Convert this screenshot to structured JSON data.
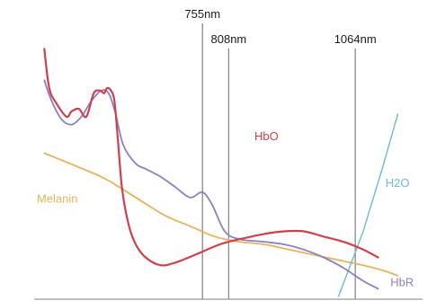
{
  "chart_data": {
    "type": "line",
    "title": "",
    "xlabel": "",
    "ylabel": "",
    "x_domain_nm": [
      400,
      1200
    ],
    "y_domain": [
      0,
      100
    ],
    "grid": false,
    "markers": [
      {
        "wavelength": 755,
        "label": "755nm"
      },
      {
        "wavelength": 808,
        "label": "808nm"
      },
      {
        "wavelength": 1064,
        "label": "1064nm"
      }
    ],
    "series": [
      {
        "name": "HbO",
        "color": "#d0404a",
        "label_at": [
          860,
          60
        ],
        "points": [
          [
            435,
            95
          ],
          [
            445,
            80
          ],
          [
            460,
            74
          ],
          [
            480,
            69
          ],
          [
            490,
            71
          ],
          [
            505,
            72
          ],
          [
            520,
            69
          ],
          [
            535,
            78
          ],
          [
            548,
            79
          ],
          [
            556,
            78
          ],
          [
            562,
            80
          ],
          [
            570,
            79
          ],
          [
            577,
            75
          ],
          [
            584,
            60
          ],
          [
            592,
            42
          ],
          [
            605,
            28
          ],
          [
            620,
            20
          ],
          [
            640,
            15
          ],
          [
            670,
            12
          ],
          [
            700,
            13
          ],
          [
            740,
            16
          ],
          [
            790,
            20
          ],
          [
            830,
            22
          ],
          [
            880,
            24
          ],
          [
            920,
            25
          ],
          [
            960,
            25
          ],
          [
            1000,
            23
          ],
          [
            1040,
            21
          ],
          [
            1080,
            18
          ],
          [
            1110,
            15
          ]
        ]
      },
      {
        "name": "HbR",
        "color": "#8a80c4",
        "label_at": [
          1135,
          4
        ],
        "points": [
          [
            435,
            83
          ],
          [
            450,
            75
          ],
          [
            470,
            68
          ],
          [
            490,
            66
          ],
          [
            510,
            69
          ],
          [
            530,
            75
          ],
          [
            550,
            79
          ],
          [
            565,
            78
          ],
          [
            578,
            71
          ],
          [
            595,
            58
          ],
          [
            620,
            51
          ],
          [
            640,
            49
          ],
          [
            670,
            46
          ],
          [
            700,
            42
          ],
          [
            730,
            38
          ],
          [
            755,
            40
          ],
          [
            775,
            35
          ],
          [
            800,
            25
          ],
          [
            830,
            22
          ],
          [
            880,
            21
          ],
          [
            920,
            20
          ],
          [
            960,
            18
          ],
          [
            1000,
            15
          ],
          [
            1040,
            11
          ],
          [
            1080,
            6
          ],
          [
            1110,
            3
          ]
        ]
      },
      {
        "name": "Melanin",
        "color": "#e8b35e",
        "label_at": [
          420,
          36
        ],
        "points": [
          [
            435,
            55
          ],
          [
            500,
            50
          ],
          [
            560,
            45
          ],
          [
            620,
            38
          ],
          [
            680,
            31
          ],
          [
            730,
            27
          ],
          [
            780,
            23
          ],
          [
            830,
            21
          ],
          [
            880,
            20
          ],
          [
            930,
            18
          ],
          [
            980,
            16
          ],
          [
            1030,
            14
          ],
          [
            1080,
            12
          ],
          [
            1120,
            10
          ],
          [
            1150,
            8
          ]
        ]
      },
      {
        "name": "H2O",
        "color": "#6bbcd6",
        "label_at": [
          1125,
          42
        ],
        "points": [
          [
            1030,
            0
          ],
          [
            1080,
            25
          ],
          [
            1120,
            50
          ],
          [
            1150,
            70
          ]
        ]
      }
    ]
  }
}
